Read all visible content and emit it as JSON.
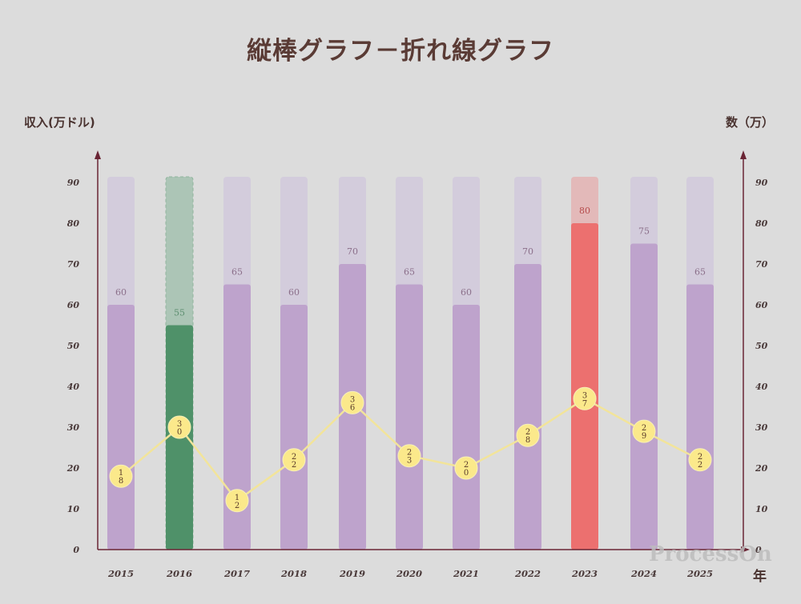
{
  "title": "縦棒グラフ－折れ線グラフ",
  "left_axis_title": "収入(万ドル)",
  "right_axis_title": "数（万）",
  "x_unit": "年",
  "watermark": "ProcessOn",
  "colors": {
    "bar": "#bea3cc",
    "bar_track": "#d3ccdc",
    "highlight_green": "#4f9169",
    "highlight_green_track": "#acc5b6",
    "highlight_red": "#ec706f",
    "highlight_red_track": "#e3b9b9",
    "line": "#f2e49a",
    "marker": "#fbe98b",
    "axis": "#6a2434"
  },
  "chart_data": {
    "type": "bar",
    "title": "縦棒グラフ－折れ線グラフ",
    "categories": [
      "2015",
      "2016",
      "2017",
      "2018",
      "2019",
      "2020",
      "2021",
      "2022",
      "2023",
      "2024",
      "2025"
    ],
    "y_left_label": "収入(万ドル)",
    "y_right_label": "数（万）",
    "x_unit": "年",
    "ylim": [
      0,
      90
    ],
    "y_ticks": [
      0,
      10,
      20,
      30,
      40,
      50,
      60,
      70,
      80,
      90
    ],
    "grid": false,
    "series": [
      {
        "type": "bar",
        "axis": "left",
        "values": [
          60,
          55,
          65,
          60,
          70,
          65,
          60,
          70,
          80,
          75,
          65
        ]
      },
      {
        "type": "line",
        "axis": "right",
        "values": [
          18,
          30,
          12,
          22,
          36,
          23,
          20,
          28,
          37,
          29,
          22
        ]
      }
    ],
    "highlights": [
      {
        "category": "2016",
        "color": "green"
      },
      {
        "category": "2023",
        "color": "red"
      }
    ]
  }
}
